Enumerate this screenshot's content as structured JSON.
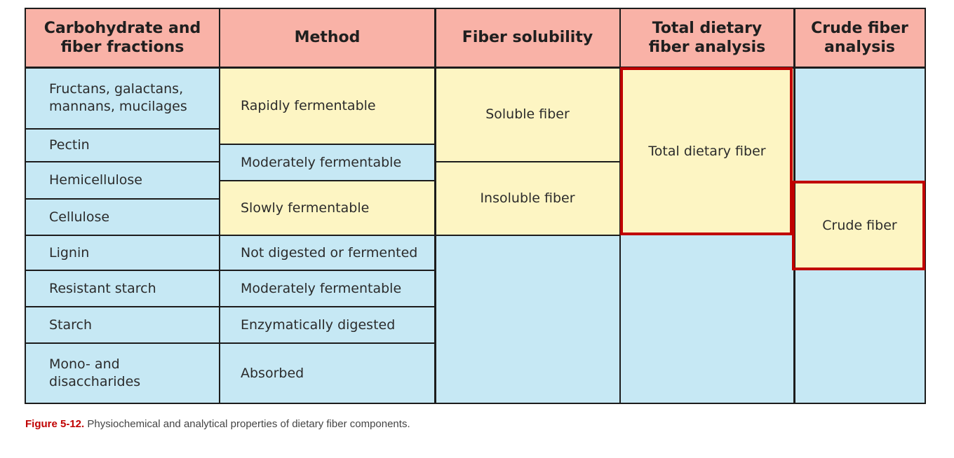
{
  "headers": {
    "fractions": "Carbohydrate and fiber fractions",
    "method": "Method",
    "solubility": "Fiber solubility",
    "total": "Total dietary fiber analysis",
    "crude": "Crude fiber analysis"
  },
  "fractions": [
    "Fructans, galactans, mannans, mucilages",
    "Pectin",
    "Hemicellulose",
    "Cellulose",
    "Lignin",
    "Resistant starch",
    "Starch",
    "Mono- and disaccharides"
  ],
  "methods": [
    "Rapidly fermentable",
    "Moderately fermentable",
    "Slowly fermentable",
    "Not digested or fermented",
    "Moderately fermentable",
    "Enzymatically digested",
    "Absorbed"
  ],
  "solubility": {
    "soluble": "Soluble fiber",
    "insoluble": "Insoluble fiber"
  },
  "total_dietary": "Total dietary fiber",
  "crude_fiber": "Crude fiber",
  "caption": {
    "label": "Figure 5-12.",
    "text": "Physiochemical and analytical properties of dietary fiber components."
  },
  "colors": {
    "header": "#f9b2a7",
    "blue": "#c6e8f4",
    "yellow": "#fdf5c3",
    "highlight_border": "#c00000"
  }
}
